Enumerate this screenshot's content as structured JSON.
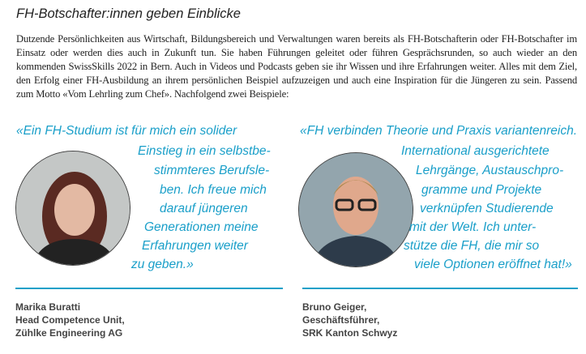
{
  "title": "FH-Botschafter:innen geben Einblicke",
  "intro": "Dutzende Persönlichkeiten aus Wirtschaft, Bildungsbereich und Verwaltungen waren bereits als FH-Botschafterin oder FH-Botschafter im Einsatz oder werden dies auch in Zukunft tun. Sie haben Führungen geleitet oder führen Gesprächsrunden, so auch wieder an den kommenden SwissSkills 2022 in Bern. Auch in Videos und Podcasts geben sie ihr Wissen und ihre Erfahrungen weiter. Alles mit dem Ziel, den Erfolg einer FH-Ausbildung an ihrem persönlichen Beispiel aufzuzeigen und auch eine Inspiration für die Jüngeren zu sein. Passend zum Motto «Vom Lehrling zum Chef». Nachfolgend zwei Beispiele:",
  "accent": "#1a9fc9",
  "left": {
    "quote": [
      "«Ein FH-Studium ist für mich ein solider",
      "Einstieg in ein selbstbe-",
      "stimmteres Berufsle-",
      "ben. Ich freue mich",
      "darauf jüngeren",
      "Generationen meine",
      "Erfahrungen weiter",
      "zu geben.»"
    ],
    "caption": [
      "Marika Buratti",
      "Head Competence Unit,",
      "Zühlke Engineering AG"
    ]
  },
  "right": {
    "quote": [
      "«FH verbinden Theorie und Praxis variantenreich.",
      "International ausgerichtete",
      "Lehrgänge, Austauschpro-",
      "gramme und Projekte",
      "verknüpfen Studierende",
      "mit der Welt. Ich unter-",
      "stütze die FH, die mir so",
      "viele Optionen eröffnet hat!»"
    ],
    "caption": [
      "Bruno Geiger,",
      "Geschäftsführer,",
      "SRK Kanton Schwyz"
    ]
  }
}
